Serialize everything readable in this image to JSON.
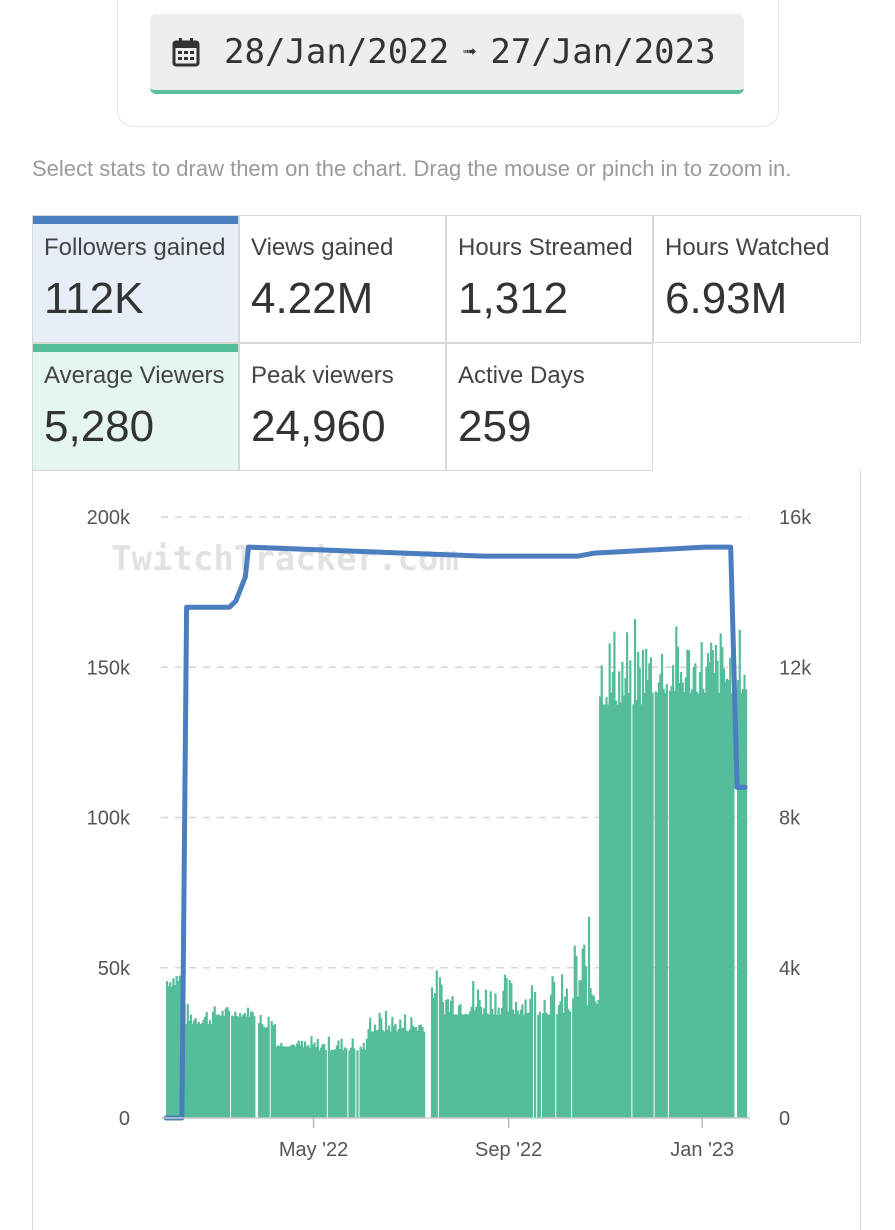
{
  "date_range": {
    "start": "28/Jan/2022",
    "arrow": "➟",
    "end": "27/Jan/2023"
  },
  "hint": "Select stats to draw them on the chart. Drag the mouse or pinch in to zoom in.",
  "stats": [
    {
      "label": "Followers gained",
      "value": "112K",
      "selected": "blue"
    },
    {
      "label": "Views gained",
      "value": "4.22M",
      "selected": ""
    },
    {
      "label": "Hours Streamed",
      "value": "1,312",
      "selected": ""
    },
    {
      "label": "Hours Watched",
      "value": "6.93M",
      "selected": ""
    },
    {
      "label": "Average Viewers",
      "value": "5,280",
      "selected": "green"
    },
    {
      "label": "Peak viewers",
      "value": "24,960",
      "selected": ""
    },
    {
      "label": "Active Days",
      "value": "259",
      "selected": ""
    }
  ],
  "chart_data": {
    "type": "bar+line",
    "watermark": "TwitchTracker.com",
    "x_domain": [
      0,
      365
    ],
    "x_ticks": [
      {
        "label": "May '22",
        "day": 93
      },
      {
        "label": "Sep '22",
        "day": 216
      },
      {
        "label": "Jan '23",
        "day": 338
      }
    ],
    "left_axis": {
      "name": "Followers",
      "ylim": [
        0,
        200000
      ],
      "ticks": [
        "0",
        "50k",
        "100k",
        "150k",
        "200k"
      ],
      "tick_values": [
        0,
        50000,
        100000,
        150000,
        200000
      ]
    },
    "right_axis": {
      "name": "Average Viewers",
      "ylim": [
        0,
        16000
      ],
      "ticks": [
        "0",
        "4k",
        "8k",
        "12k",
        "16k"
      ],
      "tick_values": [
        0,
        4000,
        8000,
        12000,
        16000
      ]
    },
    "series": [
      {
        "name": "Average Viewers",
        "type": "bar",
        "axis": "right",
        "color": "#55bc9c",
        "segments": [
          {
            "from": 0,
            "to": 10,
            "level": 3500,
            "peak": 4200
          },
          {
            "from": 11,
            "to": 28,
            "level": 2500,
            "peak": 3100
          },
          {
            "from": 29,
            "to": 55,
            "level": 2700,
            "peak": 3000
          },
          {
            "from": 56,
            "to": 68,
            "level": 2400,
            "peak": 2900
          },
          {
            "from": 69,
            "to": 85,
            "level": 1900,
            "peak": 2100
          },
          {
            "from": 86,
            "to": 126,
            "level": 1800,
            "peak": 2200
          },
          {
            "from": 127,
            "to": 162,
            "level": 2300,
            "peak": 2900
          },
          {
            "from": 166,
            "to": 172,
            "level": 3200,
            "peak": 4000
          },
          {
            "from": 173,
            "to": 255,
            "level": 2750,
            "peak": 3900
          },
          {
            "from": 256,
            "to": 272,
            "level": 3000,
            "peak": 5400
          },
          {
            "from": 273,
            "to": 300,
            "level": 11000,
            "peak": 13400
          },
          {
            "from": 301,
            "to": 365,
            "level": 11300,
            "peak": 13200
          }
        ]
      },
      {
        "name": "Followers gained",
        "type": "line",
        "axis": "left",
        "color": "#4a7ebf",
        "points": [
          [
            0,
            0
          ],
          [
            10,
            0
          ],
          [
            13,
            170000
          ],
          [
            25,
            170000
          ],
          [
            40,
            170000
          ],
          [
            44,
            172000
          ],
          [
            50,
            180000
          ],
          [
            52,
            190000
          ],
          [
            150,
            188000
          ],
          [
            200,
            187000
          ],
          [
            260,
            187000
          ],
          [
            270,
            188000
          ],
          [
            340,
            190000
          ],
          [
            356,
            190000
          ],
          [
            360,
            110000
          ],
          [
            365,
            110000
          ]
        ]
      }
    ]
  }
}
